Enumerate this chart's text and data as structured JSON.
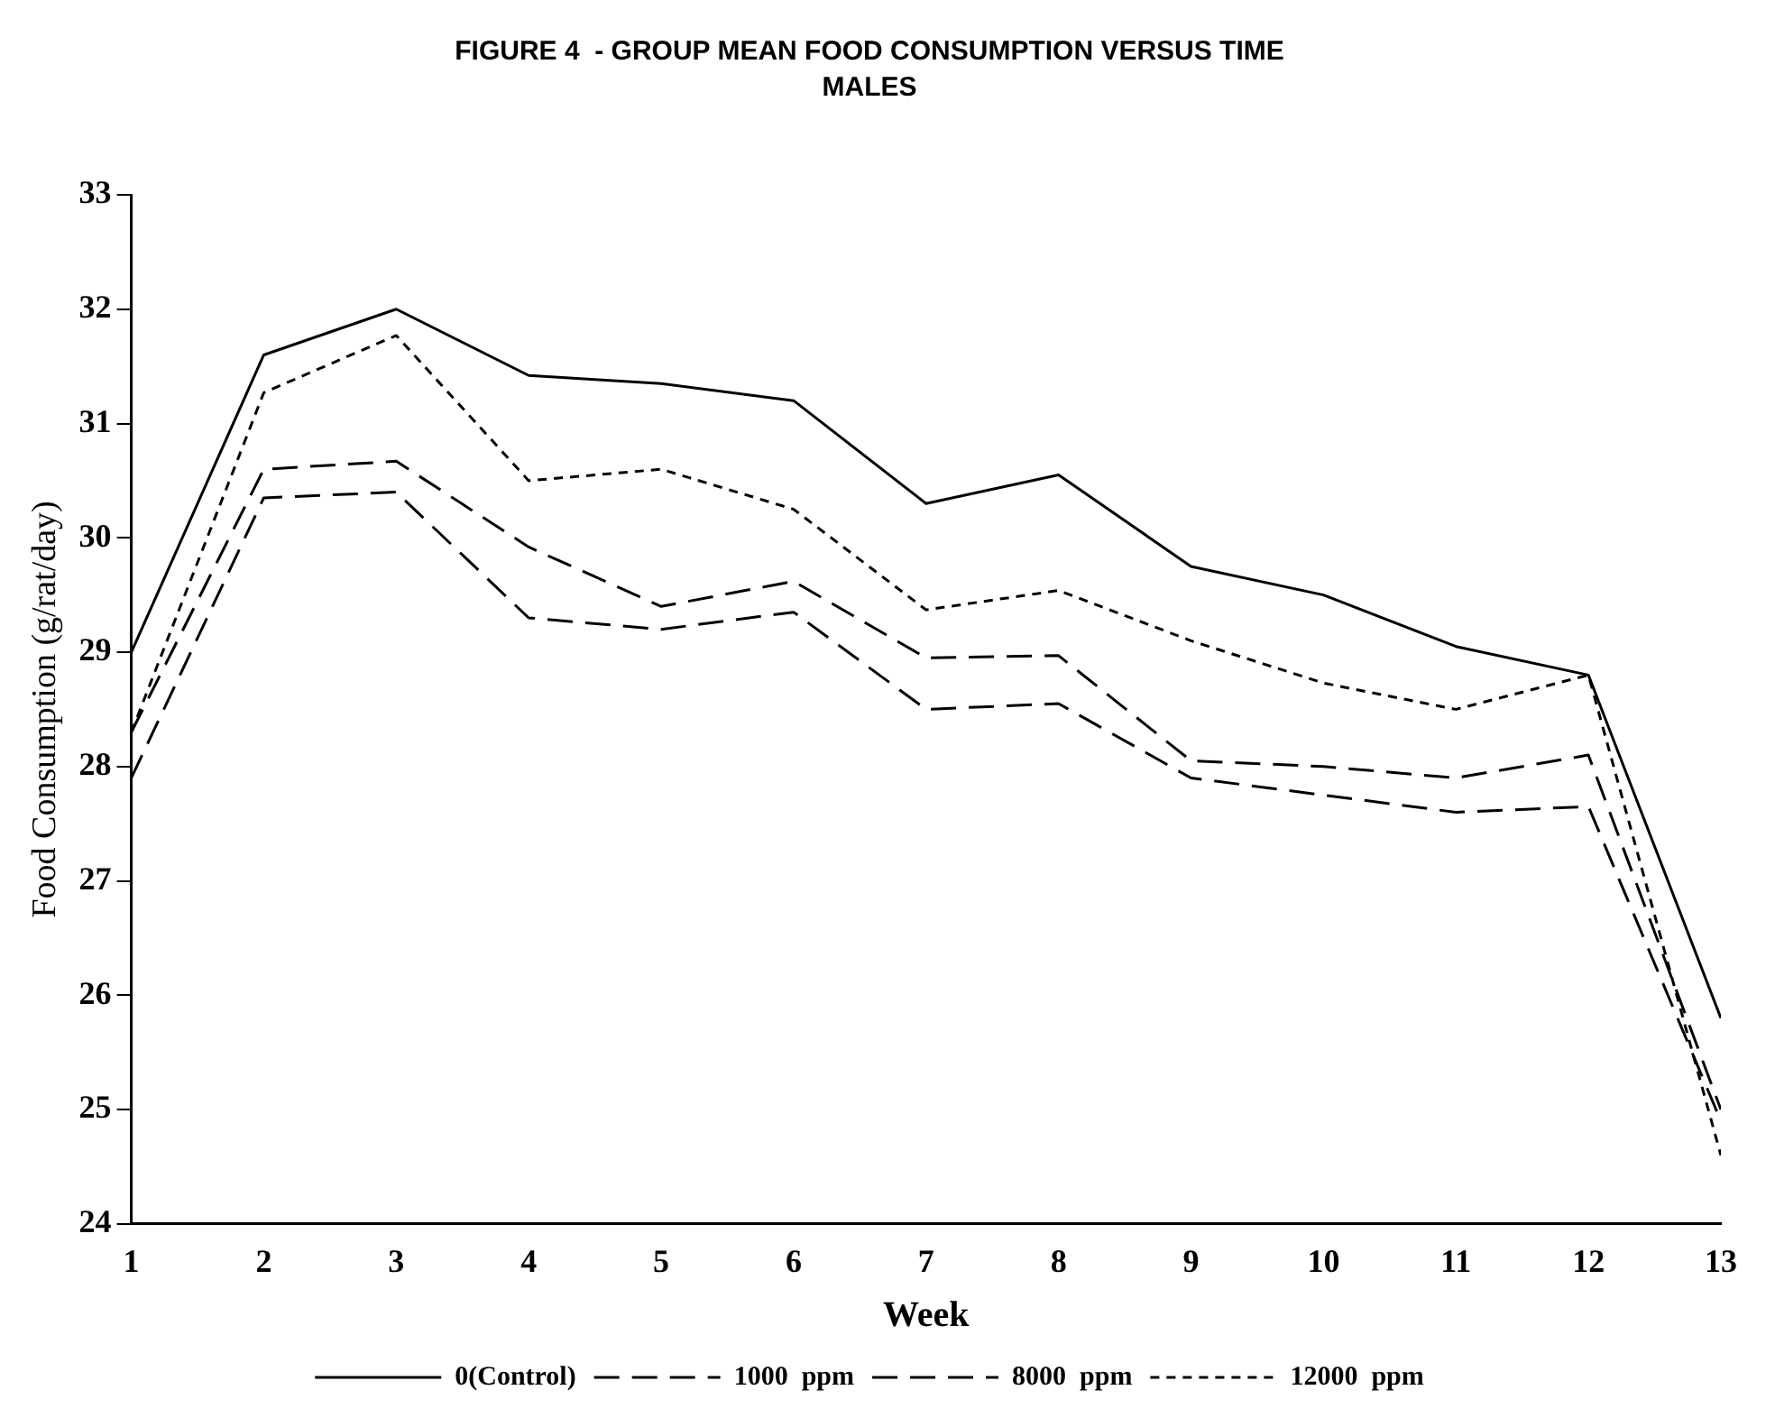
{
  "chart_data": {
    "type": "line",
    "title": "FIGURE 4  - GROUP MEAN FOOD CONSUMPTION VERSUS TIME",
    "subtitle": "MALES",
    "xlabel": "Week",
    "ylabel": "Food Consumption (g/rat/day)",
    "x": [
      1,
      2,
      3,
      4,
      5,
      6,
      7,
      8,
      9,
      10,
      11,
      12,
      13
    ],
    "xlim": [
      1,
      13
    ],
    "xticks": [
      1,
      2,
      3,
      4,
      5,
      6,
      7,
      8,
      9,
      10,
      11,
      12,
      13
    ],
    "series": [
      {
        "name": "0(Control)",
        "color": "#000000",
        "line_style": "solid",
        "values": [
          29.0,
          31.6,
          32.0,
          31.42,
          31.35,
          31.2,
          30.3,
          30.55,
          29.75,
          29.5,
          29.05,
          28.8,
          25.8
        ]
      },
      {
        "name": "1000  ppm",
        "color": "#000000",
        "line_style": "dashed",
        "values": [
          28.3,
          30.6,
          30.67,
          29.92,
          29.4,
          29.62,
          28.95,
          28.97,
          28.05,
          28.0,
          27.9,
          28.1,
          25.0
        ]
      },
      {
        "name": "8000  ppm",
        "color": "#000000",
        "line_style": "dashed",
        "values": [
          27.9,
          30.35,
          30.4,
          29.3,
          29.2,
          29.35,
          28.5,
          28.55,
          27.9,
          27.75,
          27.6,
          27.65,
          24.9
        ]
      },
      {
        "name": "12000  ppm",
        "color": "#000000",
        "line_style": "dotted",
        "values": [
          28.3,
          31.27,
          31.77,
          30.5,
          30.6,
          30.25,
          29.37,
          29.54,
          29.1,
          28.73,
          28.5,
          28.8,
          24.6
        ]
      }
    ],
    "ylim": [
      24,
      33
    ],
    "yticks": [
      24,
      25,
      26,
      27,
      28,
      29,
      30,
      31,
      32,
      33
    ],
    "grid": false,
    "legend": "bottom",
    "marker": "none"
  }
}
